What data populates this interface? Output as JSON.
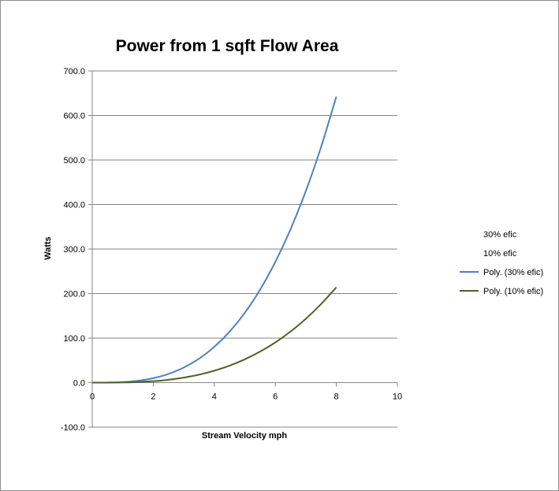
{
  "chart_data": {
    "type": "line",
    "title": "Power from 1 sqft Flow Area",
    "xlabel": "Stream Velocity mph",
    "ylabel": "Watts",
    "xlim": [
      0,
      10
    ],
    "ylim": [
      -100,
      700
    ],
    "x_ticks": [
      0,
      2,
      4,
      6,
      8,
      10
    ],
    "x_tick_labels": [
      "0",
      "2",
      "4",
      "6",
      "8",
      "10"
    ],
    "y_ticks": [
      -100,
      0,
      100,
      200,
      300,
      400,
      500,
      600,
      700
    ],
    "y_tick_labels": [
      "-100.0",
      "0.0",
      "100.0",
      "200.0",
      "300.0",
      "400.0",
      "500.0",
      "600.0",
      "700.0"
    ],
    "grid": "horizontal",
    "legend_position": "right",
    "series": [
      {
        "name": "30% efic",
        "color": "#4f81bd",
        "values": []
      },
      {
        "name": "10% efic",
        "color": "#4f6228",
        "values": []
      },
      {
        "name": "Poly. (30% efic)",
        "color": "#4f81bd",
        "x": [
          0,
          0.5,
          1,
          1.5,
          2,
          2.5,
          3,
          3.5,
          4,
          4.5,
          5,
          5.5,
          6,
          6.5,
          7,
          7.5,
          8
        ],
        "values": [
          0,
          0.2,
          1.3,
          4.2,
          10,
          19.6,
          33.9,
          53.8,
          80.3,
          114.3,
          156.8,
          208.7,
          271,
          344.5,
          430.3,
          529.2,
          642.3
        ]
      },
      {
        "name": "Poly. (10% efic)",
        "color": "#4f6228",
        "x": [
          0,
          0.5,
          1,
          1.5,
          2,
          2.5,
          3,
          3.5,
          4,
          4.5,
          5,
          5.5,
          6,
          6.5,
          7,
          7.5,
          8
        ],
        "values": [
          0,
          0.1,
          0.4,
          1.4,
          3.3,
          6.5,
          11.3,
          17.9,
          26.8,
          38.1,
          52.3,
          69.6,
          90.3,
          114.8,
          143.4,
          176.4,
          214.1
        ]
      }
    ]
  }
}
